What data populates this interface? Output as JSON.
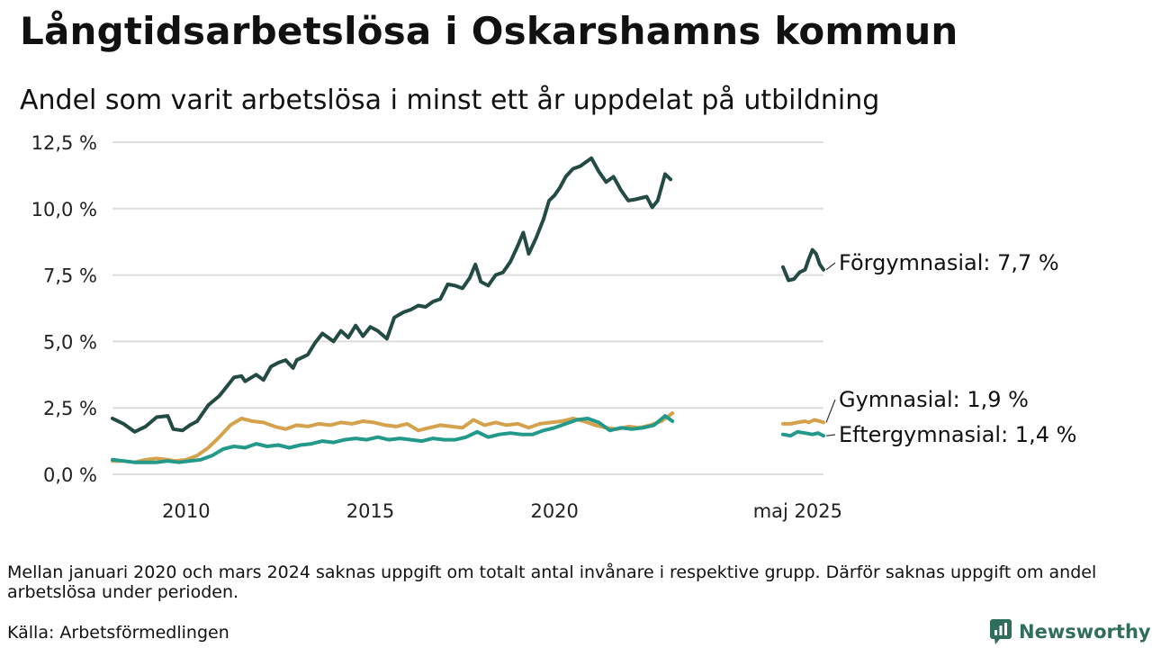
{
  "title": "Långtidsarbetslösa i Oskarshamns kommun",
  "subtitle": "Andel som varit arbetslösa i minst ett år uppdelat på utbildning",
  "note": "Mellan januari 2020 och mars 2024 saknas uppgift om totalt antal invånare i respektive grupp. Därför saknas uppgift om andel arbetslösa under perioden.",
  "source": "Källa: Arbetsförmedlingen",
  "brand": {
    "name": "Newsworthy",
    "color": "#2f6e5b"
  },
  "chart_data": {
    "type": "line",
    "x_ticks": [
      {
        "year": 2010,
        "label": "2010"
      },
      {
        "year": 2015,
        "label": "2015"
      },
      {
        "year": 2020,
        "label": "2020"
      },
      {
        "year": 2026.6,
        "label": "maj 2025"
      }
    ],
    "y_ticks": [
      {
        "value": 0,
        "label": "0,0 %"
      },
      {
        "value": 2.5,
        "label": "2,5 %"
      },
      {
        "value": 5,
        "label": "5,0 %"
      },
      {
        "value": 7.5,
        "label": "7,5 %"
      },
      {
        "value": 10,
        "label": "10,0 %"
      },
      {
        "value": 12.5,
        "label": "12,5 %"
      }
    ],
    "ylim": [
      0,
      12.5
    ],
    "xlim": [
      2008.0,
      2026.9
    ],
    "grid": true,
    "legend": "end-labels",
    "series": [
      {
        "name": "Förgymnasial",
        "end_label": "Förgymnasial: 7,7 %",
        "color": "#244b43",
        "segments": [
          [
            [
              2008.0,
              2.1
            ],
            [
              2008.3,
              1.9
            ],
            [
              2008.6,
              1.6
            ],
            [
              2008.9,
              1.8
            ],
            [
              2009.2,
              2.15
            ],
            [
              2009.5,
              2.2
            ],
            [
              2009.65,
              1.7
            ],
            [
              2009.9,
              1.65
            ],
            [
              2010.1,
              1.85
            ],
            [
              2010.3,
              2.0
            ],
            [
              2010.6,
              2.6
            ],
            [
              2010.9,
              2.95
            ],
            [
              2011.1,
              3.3
            ],
            [
              2011.3,
              3.65
            ],
            [
              2011.5,
              3.7
            ],
            [
              2011.6,
              3.5
            ],
            [
              2011.9,
              3.75
            ],
            [
              2012.1,
              3.55
            ],
            [
              2012.3,
              4.05
            ],
            [
              2012.5,
              4.2
            ],
            [
              2012.7,
              4.3
            ],
            [
              2012.9,
              4.0
            ],
            [
              2013.0,
              4.3
            ],
            [
              2013.3,
              4.5
            ],
            [
              2013.5,
              4.95
            ],
            [
              2013.7,
              5.3
            ],
            [
              2014.0,
              5.0
            ],
            [
              2014.2,
              5.4
            ],
            [
              2014.4,
              5.15
            ],
            [
              2014.6,
              5.6
            ],
            [
              2014.8,
              5.2
            ],
            [
              2015.0,
              5.55
            ],
            [
              2015.2,
              5.4
            ],
            [
              2015.45,
              5.1
            ],
            [
              2015.65,
              5.9
            ],
            [
              2015.9,
              6.1
            ],
            [
              2016.1,
              6.2
            ],
            [
              2016.3,
              6.35
            ],
            [
              2016.5,
              6.3
            ],
            [
              2016.7,
              6.5
            ],
            [
              2016.9,
              6.6
            ],
            [
              2017.1,
              7.15
            ],
            [
              2017.3,
              7.1
            ],
            [
              2017.5,
              7.0
            ],
            [
              2017.7,
              7.4
            ],
            [
              2017.85,
              7.9
            ],
            [
              2018.0,
              7.25
            ],
            [
              2018.2,
              7.1
            ],
            [
              2018.4,
              7.5
            ],
            [
              2018.6,
              7.6
            ],
            [
              2018.8,
              8.0
            ],
            [
              2019.0,
              8.6
            ],
            [
              2019.15,
              9.1
            ],
            [
              2019.3,
              8.3
            ],
            [
              2019.5,
              8.9
            ],
            [
              2019.7,
              9.6
            ],
            [
              2019.85,
              10.3
            ],
            [
              2020.0,
              10.5
            ],
            [
              2020.15,
              10.8
            ],
            [
              2020.3,
              11.2
            ],
            [
              2020.5,
              11.5
            ],
            [
              2020.7,
              11.6
            ],
            [
              2020.85,
              11.75
            ],
            [
              2021.0,
              11.9
            ],
            [
              2021.2,
              11.4
            ],
            [
              2021.4,
              11.0
            ],
            [
              2021.6,
              11.2
            ],
            [
              2021.8,
              10.7
            ],
            [
              2022.0,
              10.3
            ],
            [
              2022.2,
              10.35
            ],
            [
              2022.5,
              10.45
            ],
            [
              2022.65,
              10.05
            ],
            [
              2022.8,
              10.3
            ],
            [
              2023.0,
              11.3
            ],
            [
              2023.15,
              11.1
            ]
          ],
          [
            [
              2026.2,
              7.8
            ],
            [
              2026.35,
              7.3
            ],
            [
              2026.5,
              7.35
            ],
            [
              2026.65,
              7.6
            ],
            [
              2026.8,
              7.7
            ],
            [
              2026.9,
              8.1
            ],
            [
              2027.0,
              8.45
            ],
            [
              2027.1,
              8.3
            ],
            [
              2027.2,
              7.9
            ],
            [
              2027.3,
              7.7
            ]
          ]
        ]
      },
      {
        "name": "Gymnasial",
        "end_label": "Gymnasial: 1,9 %",
        "color": "#d4a24c",
        "segments": [
          [
            [
              2008.0,
              0.5
            ],
            [
              2008.3,
              0.5
            ],
            [
              2008.6,
              0.45
            ],
            [
              2008.9,
              0.55
            ],
            [
              2009.2,
              0.6
            ],
            [
              2009.5,
              0.55
            ],
            [
              2009.7,
              0.5
            ],
            [
              2010.0,
              0.55
            ],
            [
              2010.3,
              0.7
            ],
            [
              2010.6,
              1.0
            ],
            [
              2010.9,
              1.4
            ],
            [
              2011.2,
              1.85
            ],
            [
              2011.5,
              2.1
            ],
            [
              2011.8,
              2.0
            ],
            [
              2012.1,
              1.95
            ],
            [
              2012.4,
              1.8
            ],
            [
              2012.7,
              1.7
            ],
            [
              2013.0,
              1.85
            ],
            [
              2013.3,
              1.8
            ],
            [
              2013.6,
              1.9
            ],
            [
              2013.9,
              1.85
            ],
            [
              2014.2,
              1.95
            ],
            [
              2014.5,
              1.9
            ],
            [
              2014.8,
              2.0
            ],
            [
              2015.1,
              1.95
            ],
            [
              2015.4,
              1.85
            ],
            [
              2015.7,
              1.8
            ],
            [
              2016.0,
              1.9
            ],
            [
              2016.3,
              1.65
            ],
            [
              2016.6,
              1.75
            ],
            [
              2016.9,
              1.85
            ],
            [
              2017.2,
              1.8
            ],
            [
              2017.5,
              1.75
            ],
            [
              2017.8,
              2.05
            ],
            [
              2018.1,
              1.85
            ],
            [
              2018.4,
              1.95
            ],
            [
              2018.7,
              1.85
            ],
            [
              2019.0,
              1.9
            ],
            [
              2019.3,
              1.75
            ],
            [
              2019.6,
              1.9
            ],
            [
              2019.9,
              1.95
            ],
            [
              2020.2,
              2.0
            ],
            [
              2020.5,
              2.1
            ],
            [
              2020.8,
              2.0
            ],
            [
              2021.1,
              1.85
            ],
            [
              2021.4,
              1.75
            ],
            [
              2021.7,
              1.7
            ],
            [
              2022.0,
              1.8
            ],
            [
              2022.3,
              1.75
            ],
            [
              2022.6,
              1.85
            ],
            [
              2022.9,
              2.0
            ],
            [
              2023.2,
              2.3
            ]
          ],
          [
            [
              2026.2,
              1.9
            ],
            [
              2026.4,
              1.9
            ],
            [
              2026.6,
              1.95
            ],
            [
              2026.8,
              2.0
            ],
            [
              2026.9,
              1.95
            ],
            [
              2027.05,
              2.05
            ],
            [
              2027.2,
              2.0
            ],
            [
              2027.3,
              1.95
            ]
          ]
        ]
      },
      {
        "name": "Eftergymnasial",
        "end_label": "Eftergymnasial: 1,4 %",
        "color": "#22998a",
        "segments": [
          [
            [
              2008.0,
              0.55
            ],
            [
              2008.3,
              0.5
            ],
            [
              2008.6,
              0.45
            ],
            [
              2008.9,
              0.45
            ],
            [
              2009.2,
              0.45
            ],
            [
              2009.5,
              0.5
            ],
            [
              2009.8,
              0.45
            ],
            [
              2010.1,
              0.5
            ],
            [
              2010.4,
              0.55
            ],
            [
              2010.7,
              0.7
            ],
            [
              2011.0,
              0.95
            ],
            [
              2011.3,
              1.05
            ],
            [
              2011.6,
              1.0
            ],
            [
              2011.9,
              1.15
            ],
            [
              2012.2,
              1.05
            ],
            [
              2012.5,
              1.1
            ],
            [
              2012.8,
              1.0
            ],
            [
              2013.1,
              1.1
            ],
            [
              2013.4,
              1.15
            ],
            [
              2013.7,
              1.25
            ],
            [
              2014.0,
              1.2
            ],
            [
              2014.3,
              1.3
            ],
            [
              2014.6,
              1.35
            ],
            [
              2014.9,
              1.3
            ],
            [
              2015.2,
              1.4
            ],
            [
              2015.5,
              1.3
            ],
            [
              2015.8,
              1.35
            ],
            [
              2016.1,
              1.3
            ],
            [
              2016.4,
              1.25
            ],
            [
              2016.7,
              1.35
            ],
            [
              2017.0,
              1.3
            ],
            [
              2017.3,
              1.3
            ],
            [
              2017.6,
              1.4
            ],
            [
              2017.9,
              1.6
            ],
            [
              2018.2,
              1.4
            ],
            [
              2018.5,
              1.5
            ],
            [
              2018.8,
              1.55
            ],
            [
              2019.1,
              1.5
            ],
            [
              2019.4,
              1.5
            ],
            [
              2019.7,
              1.65
            ],
            [
              2020.0,
              1.75
            ],
            [
              2020.3,
              1.9
            ],
            [
              2020.6,
              2.05
            ],
            [
              2020.9,
              2.1
            ],
            [
              2021.2,
              1.95
            ],
            [
              2021.5,
              1.65
            ],
            [
              2021.8,
              1.75
            ],
            [
              2022.1,
              1.7
            ],
            [
              2022.4,
              1.75
            ],
            [
              2022.7,
              1.85
            ],
            [
              2023.0,
              2.2
            ],
            [
              2023.2,
              2.0
            ]
          ],
          [
            [
              2026.2,
              1.5
            ],
            [
              2026.4,
              1.45
            ],
            [
              2026.6,
              1.6
            ],
            [
              2026.8,
              1.55
            ],
            [
              2027.0,
              1.5
            ],
            [
              2027.15,
              1.55
            ],
            [
              2027.3,
              1.45
            ]
          ]
        ]
      }
    ]
  }
}
